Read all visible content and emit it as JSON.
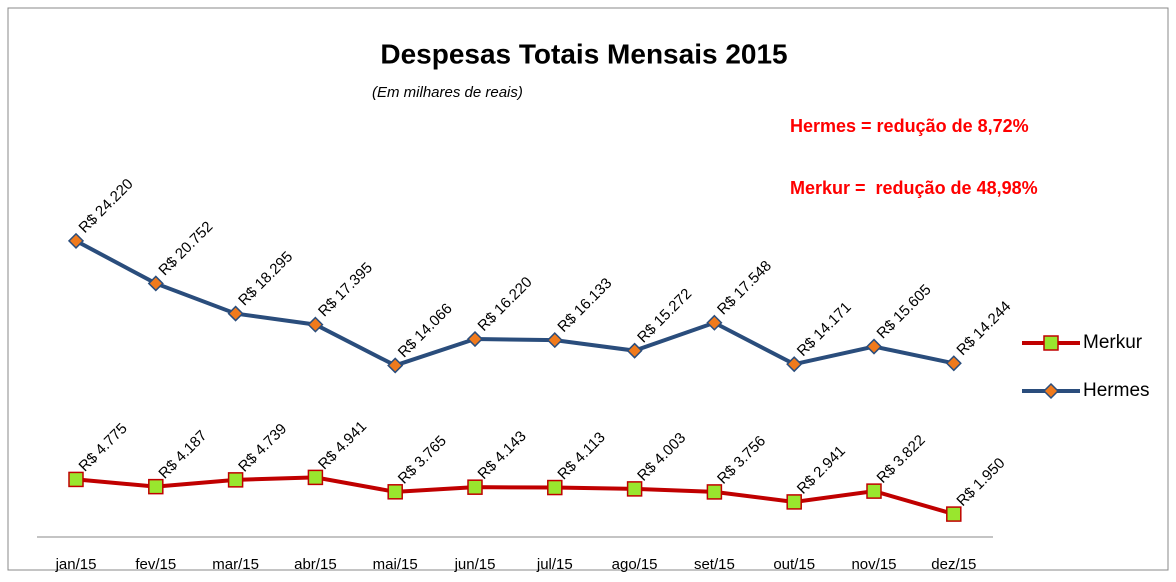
{
  "chart_data": {
    "type": "line",
    "title": "Despesas Totais Mensais 2015",
    "subtitle": "(Em milhares de reais)",
    "annotations": [
      "Hermes = redução de 8,72%",
      "Merkur =  redução de 48,98%"
    ],
    "categories": [
      "jan/15",
      "fev/15",
      "mar/15",
      "abr/15",
      "mai/15",
      "jun/15",
      "jul/15",
      "ago/15",
      "set/15",
      "out/15",
      "nov/15",
      "dez/15"
    ],
    "series": [
      {
        "name": "Merkur",
        "color": "#c00000",
        "marker_color": "#99e62e",
        "values": [
          4775,
          4187,
          4739,
          4941,
          3765,
          4143,
          4113,
          4003,
          3756,
          2941,
          3822,
          1950
        ],
        "value_labels": [
          "R$ 4.775",
          "R$ 4.187",
          "R$ 4.739",
          "R$ 4.941",
          "R$ 3.765",
          "R$ 4.143",
          "R$ 4.113",
          "R$ 4.003",
          "R$ 3.756",
          "R$ 2.941",
          "R$ 3.822",
          "R$ 1.950"
        ]
      },
      {
        "name": "Hermes",
        "color": "#2a4d7c",
        "marker_color": "#f07a1c",
        "values": [
          24220,
          20752,
          18295,
          17395,
          14066,
          16220,
          16133,
          15272,
          17548,
          14171,
          15605,
          14244
        ],
        "value_labels": [
          "R$ 24.220",
          "R$ 20.752",
          "R$ 18.295",
          "R$ 17.395",
          "R$ 14.066",
          "R$ 16.220",
          "R$ 16.133",
          "R$ 15.272",
          "R$ 17.548",
          "R$ 14.171",
          "R$ 15.605",
          "R$ 14.244"
        ]
      }
    ],
    "ylim": [
      0,
      30000
    ],
    "legend": "right"
  }
}
